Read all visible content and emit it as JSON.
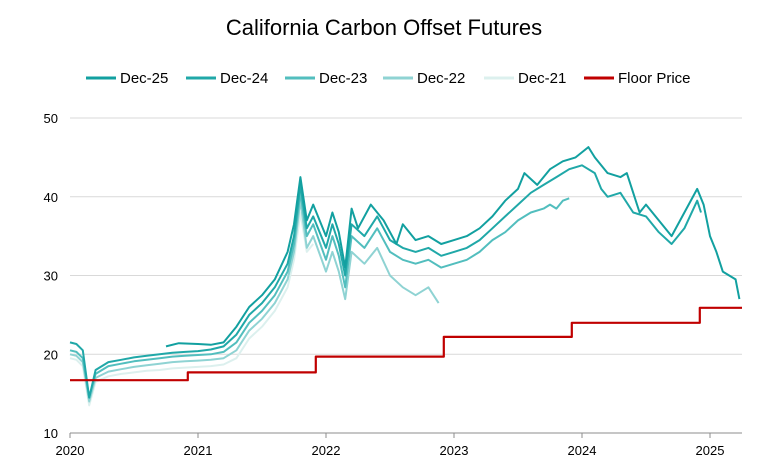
{
  "chart_data": {
    "type": "line",
    "title": "California Carbon Offset Futures",
    "xlabel": "",
    "ylabel": "",
    "xlim": [
      2020.0,
      2025.25
    ],
    "ylim": [
      10,
      50
    ],
    "x_ticks": [
      2020,
      2021,
      2022,
      2023,
      2024,
      2025
    ],
    "x_tick_labels": [
      "2020",
      "2021",
      "2022",
      "2023",
      "2024",
      "2025"
    ],
    "y_ticks": [
      10,
      20,
      30,
      40,
      50
    ],
    "y_tick_labels": [
      "10",
      "20",
      "30",
      "40",
      "50"
    ],
    "grid": "horizontal",
    "legend_position": "top",
    "series": [
      {
        "name": "Dec-25",
        "color": "#12a0a0",
        "x": [
          2020.75,
          2020.85,
          2021.0,
          2021.1,
          2021.2,
          2021.3,
          2021.4,
          2021.5,
          2021.6,
          2021.7,
          2021.75,
          2021.8,
          2021.85,
          2021.9,
          2022.0,
          2022.05,
          2022.1,
          2022.15,
          2022.2,
          2022.25,
          2022.35,
          2022.45,
          2022.55,
          2022.6,
          2022.7,
          2022.8,
          2022.9,
          2023.0,
          2023.1,
          2023.2,
          2023.3,
          2023.4,
          2023.5,
          2023.55,
          2023.65,
          2023.75,
          2023.85,
          2023.95,
          2024.05,
          2024.1,
          2024.2,
          2024.3,
          2024.35,
          2024.45,
          2024.5,
          2024.6,
          2024.7,
          2024.8,
          2024.9,
          2024.95,
          2025.0,
          2025.05,
          2025.1,
          2025.15,
          2025.2,
          2025.23
        ],
        "values": [
          21.0,
          21.4,
          21.3,
          21.2,
          21.5,
          23.5,
          26.0,
          27.5,
          29.5,
          33.0,
          36.5,
          42.5,
          37.0,
          39.0,
          35.0,
          38.0,
          35.5,
          31.0,
          38.5,
          36.0,
          39.0,
          37.0,
          34.0,
          36.5,
          34.5,
          35.0,
          34.0,
          34.5,
          35.0,
          36.0,
          37.5,
          39.5,
          41.0,
          43.0,
          41.5,
          43.5,
          44.5,
          45.0,
          46.3,
          45.0,
          43.0,
          42.5,
          43.0,
          38.0,
          39.0,
          37.0,
          35.0,
          38.0,
          41.0,
          39.0,
          35.0,
          33.0,
          30.5,
          30.0,
          29.5,
          27.0
        ]
      },
      {
        "name": "Dec-24",
        "color": "#20a8a8",
        "x": [
          2020.0,
          2020.05,
          2020.1,
          2020.15,
          2020.2,
          2020.3,
          2020.4,
          2020.5,
          2020.6,
          2020.7,
          2020.8,
          2020.9,
          2021.0,
          2021.1,
          2021.2,
          2021.3,
          2021.4,
          2021.5,
          2021.6,
          2021.7,
          2021.75,
          2021.8,
          2021.85,
          2021.9,
          2022.0,
          2022.05,
          2022.1,
          2022.15,
          2022.2,
          2022.3,
          2022.4,
          2022.5,
          2022.6,
          2022.7,
          2022.8,
          2022.9,
          2023.0,
          2023.1,
          2023.2,
          2023.3,
          2023.4,
          2023.5,
          2023.6,
          2023.7,
          2023.8,
          2023.9,
          2024.0,
          2024.1,
          2024.15,
          2024.2,
          2024.3,
          2024.4,
          2024.5,
          2024.6,
          2024.7,
          2024.8,
          2024.9,
          2024.93
        ],
        "values": [
          21.5,
          21.3,
          20.5,
          14.5,
          18.0,
          19.0,
          19.3,
          19.6,
          19.8,
          20.0,
          20.2,
          20.3,
          20.4,
          20.6,
          21.0,
          22.5,
          25.0,
          26.5,
          28.5,
          31.5,
          35.0,
          41.5,
          36.0,
          37.5,
          33.5,
          36.5,
          34.0,
          30.0,
          36.5,
          35.0,
          37.5,
          34.5,
          33.5,
          33.0,
          33.5,
          32.5,
          33.0,
          33.5,
          34.5,
          36.0,
          37.5,
          39.0,
          40.5,
          41.5,
          42.5,
          43.5,
          44.0,
          43.0,
          41.0,
          40.0,
          40.5,
          38.0,
          37.5,
          35.5,
          34.0,
          36.0,
          39.5,
          38.0
        ]
      },
      {
        "name": "Dec-23",
        "color": "#52bebe",
        "x": [
          2020.0,
          2020.05,
          2020.1,
          2020.15,
          2020.2,
          2020.3,
          2020.4,
          2020.5,
          2020.6,
          2020.7,
          2020.8,
          2020.9,
          2021.0,
          2021.1,
          2021.2,
          2021.3,
          2021.4,
          2021.5,
          2021.6,
          2021.7,
          2021.75,
          2021.8,
          2021.85,
          2021.9,
          2022.0,
          2022.05,
          2022.1,
          2022.15,
          2022.2,
          2022.3,
          2022.4,
          2022.5,
          2022.6,
          2022.7,
          2022.8,
          2022.9,
          2023.0,
          2023.1,
          2023.2,
          2023.3,
          2023.4,
          2023.5,
          2023.6,
          2023.7,
          2023.75,
          2023.8,
          2023.85,
          2023.9
        ],
        "values": [
          20.5,
          20.3,
          19.5,
          14.5,
          17.5,
          18.5,
          18.8,
          19.1,
          19.3,
          19.5,
          19.7,
          19.8,
          19.9,
          20.0,
          20.3,
          21.5,
          24.0,
          25.5,
          27.5,
          30.5,
          34.0,
          40.5,
          35.0,
          36.5,
          32.0,
          35.0,
          32.5,
          28.5,
          35.0,
          33.5,
          36.0,
          33.0,
          32.0,
          31.5,
          32.0,
          31.0,
          31.5,
          32.0,
          33.0,
          34.5,
          35.5,
          37.0,
          38.0,
          38.5,
          39.0,
          38.5,
          39.5,
          39.8
        ]
      },
      {
        "name": "Dec-22",
        "color": "#8fd3d3",
        "x": [
          2020.0,
          2020.05,
          2020.1,
          2020.15,
          2020.2,
          2020.3,
          2020.4,
          2020.5,
          2020.6,
          2020.7,
          2020.8,
          2020.9,
          2021.0,
          2021.1,
          2021.2,
          2021.3,
          2021.4,
          2021.5,
          2021.6,
          2021.7,
          2021.75,
          2021.8,
          2021.85,
          2021.9,
          2022.0,
          2022.05,
          2022.1,
          2022.15,
          2022.2,
          2022.3,
          2022.4,
          2022.5,
          2022.6,
          2022.7,
          2022.8,
          2022.88
        ],
        "values": [
          20.0,
          19.8,
          19.0,
          14.0,
          17.0,
          17.8,
          18.1,
          18.4,
          18.6,
          18.8,
          19.0,
          19.1,
          19.2,
          19.3,
          19.5,
          20.5,
          23.0,
          24.5,
          26.5,
          29.5,
          33.0,
          39.5,
          33.5,
          35.0,
          30.5,
          33.0,
          30.5,
          27.0,
          33.0,
          31.5,
          33.5,
          30.0,
          28.5,
          27.5,
          28.5,
          26.5
        ]
      },
      {
        "name": "Dec-21",
        "color": "#dcf0ee",
        "x": [
          2020.0,
          2020.05,
          2020.1,
          2020.15,
          2020.2,
          2020.3,
          2020.4,
          2020.5,
          2020.6,
          2020.7,
          2020.8,
          2020.9,
          2021.0,
          2021.1,
          2021.2,
          2021.3,
          2021.4,
          2021.5,
          2021.6,
          2021.7,
          2021.75,
          2021.8,
          2021.85,
          2021.9
        ],
        "values": [
          19.5,
          19.3,
          18.5,
          13.5,
          16.5,
          17.2,
          17.5,
          17.7,
          17.9,
          18.0,
          18.2,
          18.3,
          18.4,
          18.5,
          18.7,
          19.5,
          22.0,
          23.5,
          25.5,
          28.5,
          32.0,
          38.0,
          33.0,
          34.0
        ]
      },
      {
        "name": "Floor Price",
        "color": "#c00000",
        "step": true,
        "x": [
          2020.0,
          2020.92,
          2020.92,
          2021.92,
          2021.92,
          2022.92,
          2022.92,
          2023.92,
          2023.92,
          2024.92,
          2024.92,
          2025.25
        ],
        "values": [
          16.7,
          16.7,
          17.7,
          17.7,
          19.7,
          19.7,
          22.2,
          22.2,
          24.0,
          24.0,
          25.9,
          25.9
        ]
      }
    ]
  }
}
